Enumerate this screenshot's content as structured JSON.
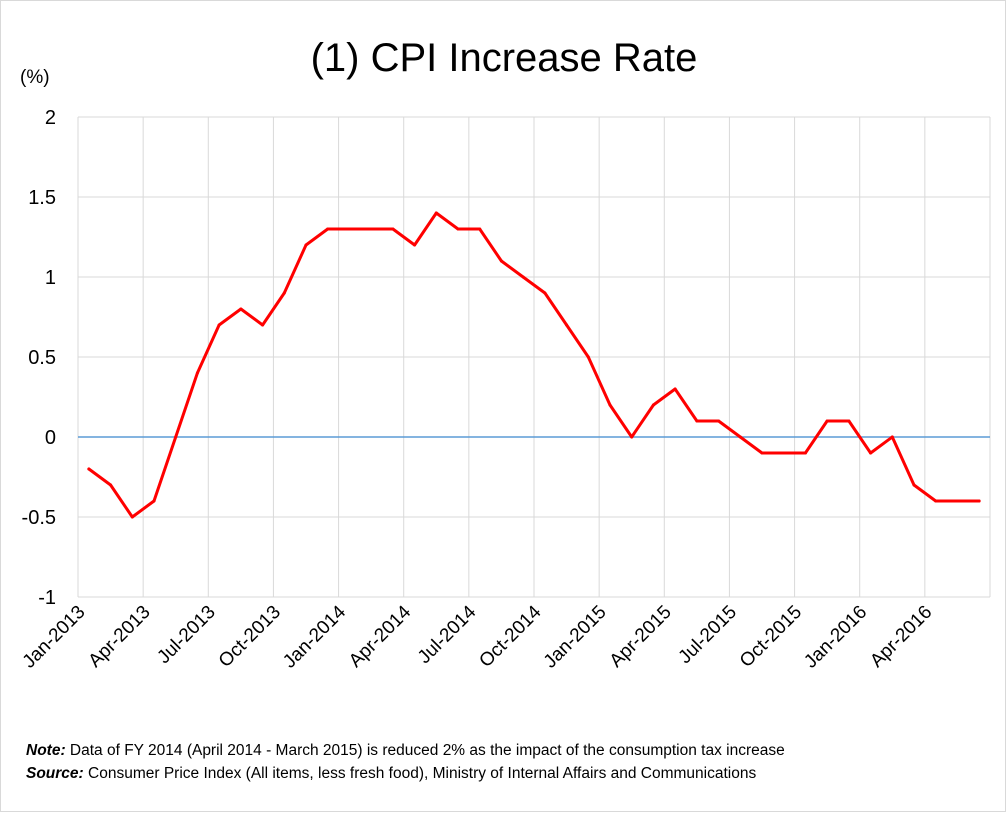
{
  "chart_data": {
    "type": "line",
    "title": "(1) CPI Increase Rate",
    "ylabel": "(%)",
    "xlabel": "",
    "ylim": [
      -1,
      2
    ],
    "yticks": [
      "2",
      "1.5",
      "1",
      "0.5",
      "0",
      "-0.5",
      "-1"
    ],
    "ytick_values": [
      2,
      1.5,
      1,
      0.5,
      0,
      -0.5,
      -1
    ],
    "xtick_labels": [
      "Jan-2013",
      "Apr-2013",
      "Jul-2013",
      "Oct-2013",
      "Jan-2014",
      "Apr-2014",
      "Jul-2014",
      "Oct-2014",
      "Jan-2015",
      "Apr-2015",
      "Jul-2015",
      "Oct-2015",
      "Jan-2016",
      "Apr-2016"
    ],
    "x": [
      "Jan-2013",
      "Feb-2013",
      "Mar-2013",
      "Apr-2013",
      "May-2013",
      "Jun-2013",
      "Jul-2013",
      "Aug-2013",
      "Sep-2013",
      "Oct-2013",
      "Nov-2013",
      "Dec-2013",
      "Jan-2014",
      "Feb-2014",
      "Mar-2014",
      "Apr-2014",
      "May-2014",
      "Jun-2014",
      "Jul-2014",
      "Aug-2014",
      "Sep-2014",
      "Oct-2014",
      "Nov-2014",
      "Dec-2014",
      "Jan-2015",
      "Feb-2015",
      "Mar-2015",
      "Apr-2015",
      "May-2015",
      "Jun-2015",
      "Jul-2015",
      "Aug-2015",
      "Sep-2015",
      "Oct-2015",
      "Nov-2015",
      "Dec-2015",
      "Jan-2016",
      "Feb-2016",
      "Mar-2016",
      "Apr-2016",
      "May-2016",
      "Jun-2016"
    ],
    "series": [
      {
        "color": "#ff0000",
        "values": [
          -0.2,
          -0.3,
          -0.5,
          -0.4,
          0.0,
          0.4,
          0.7,
          0.8,
          0.7,
          0.9,
          1.2,
          1.3,
          1.3,
          1.3,
          1.3,
          1.2,
          1.4,
          1.3,
          1.3,
          1.1,
          1.0,
          0.9,
          0.7,
          0.5,
          0.2,
          0.0,
          0.2,
          0.3,
          0.1,
          0.1,
          0.0,
          -0.1,
          -0.1,
          -0.1,
          0.1,
          0.1,
          -0.1,
          0.0,
          -0.3,
          -0.4,
          -0.4,
          -0.4
        ]
      }
    ],
    "zero_line_color": "#5b9bd5",
    "grid": true,
    "grid_color": "#d9d9d9"
  },
  "notes": {
    "note_label": "Note:",
    "note_text": " Data of FY 2014 (April 2014 - March 2015) is reduced 2% as the  impact of the consumption tax increase",
    "source_label": "Source:",
    "source_text": " Consumer Price Index (All items, less fresh food), Ministry of Internal Affairs and Communications"
  }
}
